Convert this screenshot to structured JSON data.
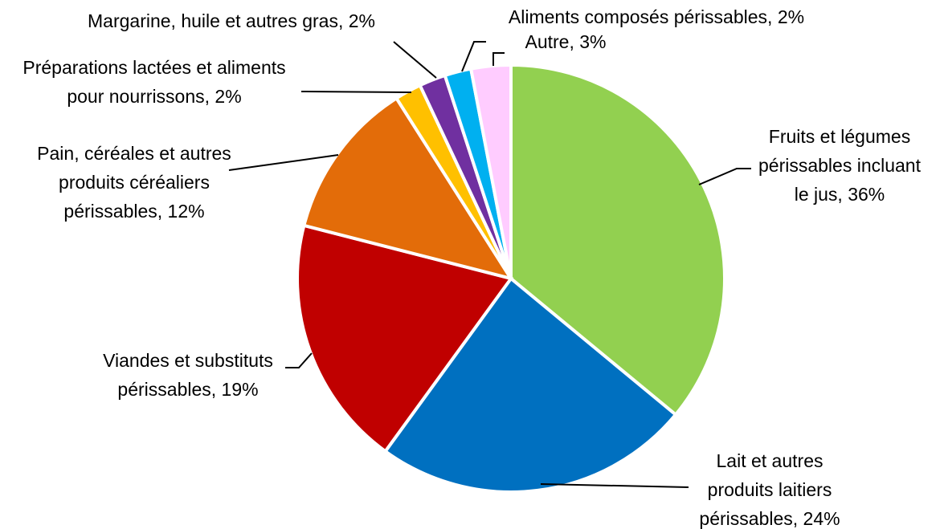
{
  "chart_data": {
    "type": "pie",
    "title": "",
    "start_angle_deg": 0,
    "direction": "clockwise",
    "slices": [
      {
        "label_lines": [
          "Fruits et légumes",
          "périssables incluant",
          "le jus, 36%"
        ],
        "value": 36,
        "color": "#92d050"
      },
      {
        "label_lines": [
          "Lait et autres",
          "produits laitiers",
          "périssables, 24%"
        ],
        "value": 24,
        "color": "#0070c0"
      },
      {
        "label_lines": [
          "Viandes et substituts",
          "périssables, 19%"
        ],
        "value": 19,
        "color": "#c00000"
      },
      {
        "label_lines": [
          "Pain, céréales et autres",
          "produits céréaliers",
          "périssables, 12%"
        ],
        "value": 12,
        "color": "#e36c09"
      },
      {
        "label_lines": [
          "Préparations lactées et aliments",
          "pour nourrissons, 2%"
        ],
        "value": 2,
        "color": "#ffc000"
      },
      {
        "label_lines": [
          "Margarine, huile et autres gras, 2%"
        ],
        "value": 2,
        "color": "#7030a0"
      },
      {
        "label_lines": [
          "Aliments composés périssables, 2%"
        ],
        "value": 2,
        "color": "#00b0f0"
      },
      {
        "label_lines": [
          "Autre, 3%"
        ],
        "value": 3,
        "color": "#ffccff"
      }
    ]
  }
}
